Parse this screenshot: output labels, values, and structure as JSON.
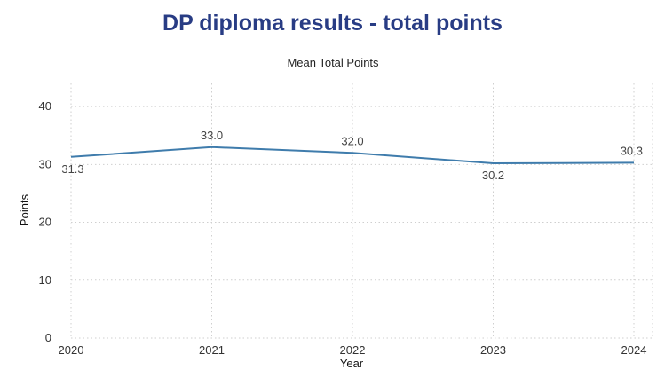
{
  "header": {
    "title": "DP diploma results - total points"
  },
  "chart_data": {
    "type": "line",
    "title": "DP diploma results - total points",
    "subtitle": "Mean Total Points",
    "xlabel": "Year",
    "ylabel": "Points",
    "x": [
      2020,
      2021,
      2022,
      2023,
      2024
    ],
    "series": [
      {
        "values": [
          31.3,
          33.0,
          32.0,
          30.2,
          30.3
        ]
      }
    ],
    "data_labels": [
      "31.3",
      "33.0",
      "32.0",
      "30.2",
      "30.3"
    ],
    "y_ticks": [
      0,
      10,
      20,
      30,
      40
    ],
    "ylim": [
      0,
      44
    ],
    "grid": true,
    "line_color": "#3f7cac"
  }
}
